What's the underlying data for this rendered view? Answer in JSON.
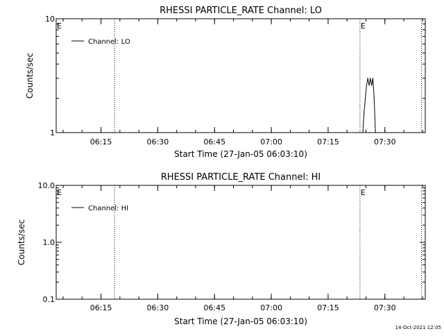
{
  "footer": {
    "timestamp": "14-Oct-2021 12:05"
  },
  "chart_data": [
    {
      "type": "line",
      "title": "RHESSI PARTICLE_RATE Channel: LO",
      "xlabel": "Start Time (27-Jan-05 06:03:10)",
      "ylabel": "Counts/sec",
      "xlim": [
        "06:03:10",
        "07:40:40"
      ],
      "yscale": "log",
      "ylim": [
        1,
        10
      ],
      "xticks": [
        "06:15",
        "06:30",
        "06:45",
        "07:00",
        "07:15",
        "07:30"
      ],
      "yticks": [
        "1",
        "10"
      ],
      "legend": {
        "entries": [
          "Channel: LO"
        ],
        "placement": "top-left"
      },
      "markers": [
        {
          "label": "E",
          "time": "06:03:10"
        },
        {
          "label": "",
          "time": "06:18:35"
        },
        {
          "label": "E",
          "time": "07:23:25"
        },
        {
          "label": "",
          "time": "07:39:40"
        }
      ],
      "series": [
        {
          "name": "Channel: LO",
          "x": [
            "07:24:10",
            "07:24:30",
            "07:24:50",
            "07:25:10",
            "07:25:30",
            "07:25:50",
            "07:26:10",
            "07:26:30",
            "07:26:50",
            "07:27:10",
            "07:27:30"
          ],
          "y": [
            1,
            1.5,
            2,
            2.6,
            3,
            2.6,
            3,
            2.6,
            3,
            2,
            1
          ]
        }
      ]
    },
    {
      "type": "line",
      "title": "RHESSI PARTICLE_RATE Channel: HI",
      "xlabel": "Start Time (27-Jan-05 06:03:10)",
      "ylabel": "Counts/sec",
      "xlim": [
        "06:03:10",
        "07:40:40"
      ],
      "yscale": "log",
      "ylim": [
        0.1,
        10
      ],
      "xticks": [
        "06:15",
        "06:30",
        "06:45",
        "07:00",
        "07:15",
        "07:30"
      ],
      "yticks": [
        "0.1",
        "1.0",
        "10.0"
      ],
      "legend": {
        "entries": [
          "Channel: HI"
        ],
        "placement": "top-left"
      },
      "markers": [
        {
          "label": "E",
          "time": "06:03:10"
        },
        {
          "label": "",
          "time": "06:18:35"
        },
        {
          "label": "E",
          "time": "07:23:25"
        },
        {
          "label": "",
          "time": "07:39:40"
        }
      ],
      "series": [
        {
          "name": "Channel: HI",
          "x": [],
          "y": []
        }
      ]
    }
  ]
}
